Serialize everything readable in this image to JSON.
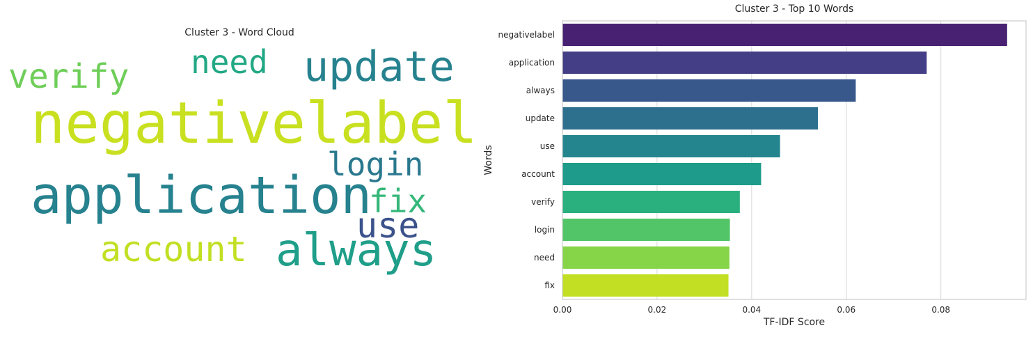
{
  "chart_data": [
    {
      "type": "wordcloud",
      "title": "Cluster 3 - Word Cloud",
      "words": [
        {
          "text": "negativelabel",
          "color": "#c8e020"
        },
        {
          "text": "application",
          "color": "#26828e"
        },
        {
          "text": "update",
          "color": "#26828e"
        },
        {
          "text": "always",
          "color": "#1f9e89"
        },
        {
          "text": "use",
          "color": "#3b528b"
        },
        {
          "text": "account",
          "color": "#c2df23"
        },
        {
          "text": "verify",
          "color": "#6ece58"
        },
        {
          "text": "need",
          "color": "#22a884"
        },
        {
          "text": "login",
          "color": "#2a788e"
        },
        {
          "text": "fix",
          "color": "#35b779"
        }
      ]
    },
    {
      "type": "bar",
      "orientation": "horizontal",
      "title": "Cluster 3 - Top 10 Words",
      "xlabel": "TF-IDF Score",
      "ylabel": "Words",
      "categories": [
        "negativelabel",
        "application",
        "always",
        "update",
        "use",
        "account",
        "verify",
        "login",
        "need",
        "fix"
      ],
      "values": [
        0.094,
        0.077,
        0.062,
        0.054,
        0.046,
        0.042,
        0.0375,
        0.0354,
        0.0353,
        0.0351
      ],
      "colors": [
        "#482173",
        "#433e85",
        "#38588c",
        "#2d708e",
        "#25858e",
        "#1e9b8a",
        "#2ab07f",
        "#52c569",
        "#86d549",
        "#c2df23"
      ],
      "xlim": [
        0,
        0.098
      ],
      "xticks": [
        "0.00",
        "0.02",
        "0.04",
        "0.06",
        "0.08"
      ],
      "grid": true
    }
  ]
}
